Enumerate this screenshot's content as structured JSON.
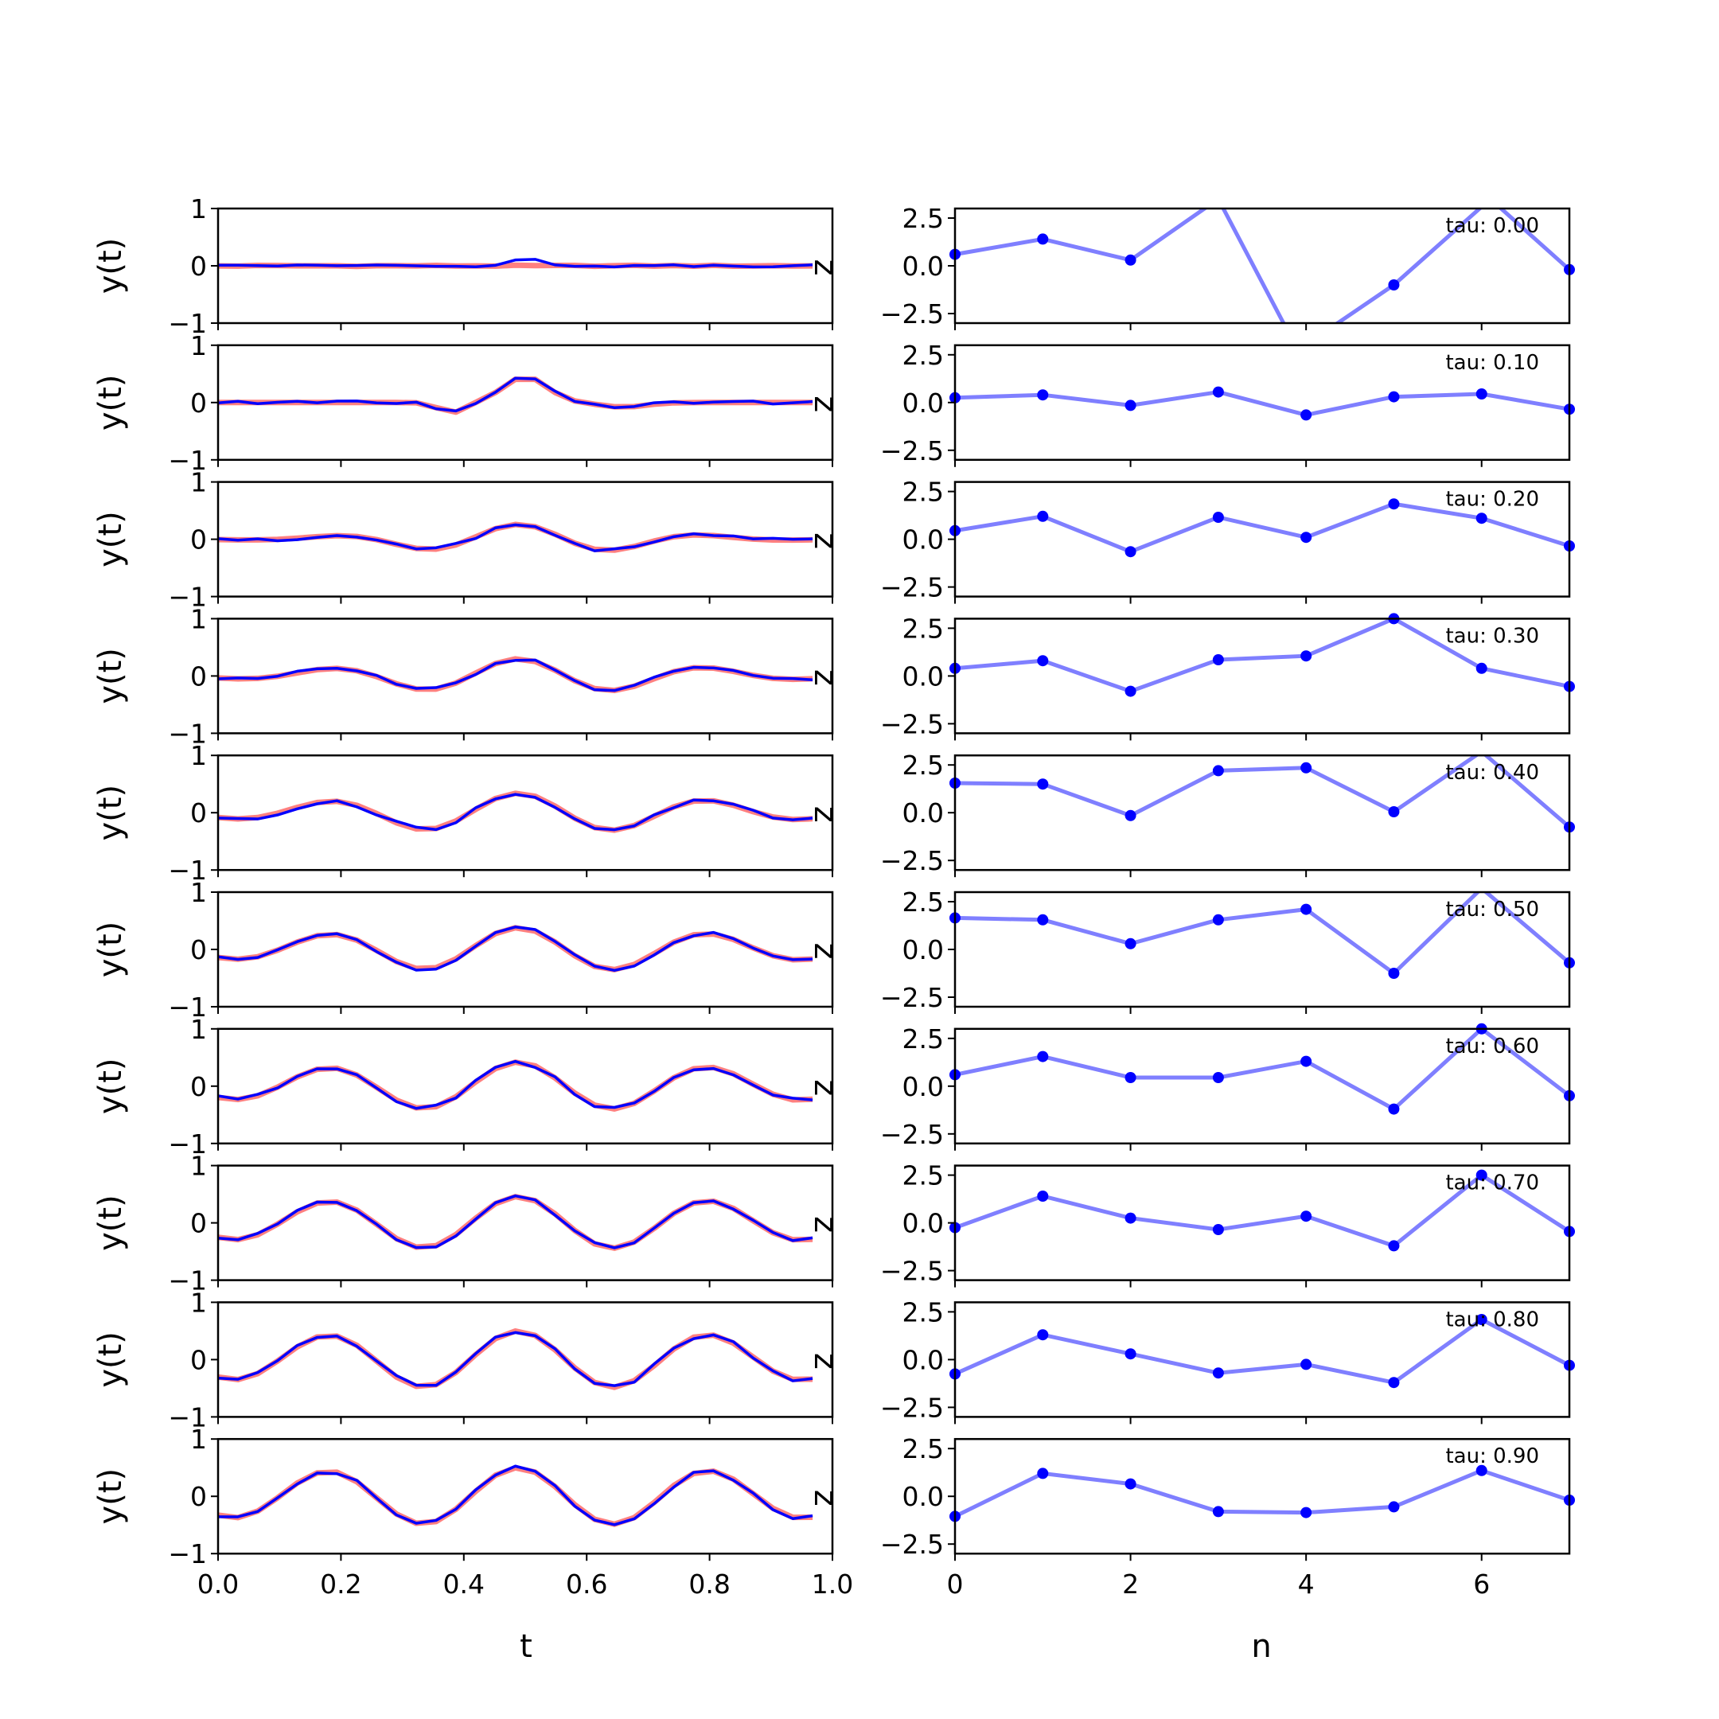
{
  "figure": {
    "left_xlabel": "t",
    "right_xlabel": "n",
    "left_ylabel": "y(t)",
    "corner_label": "z",
    "tau_prefix": "tau: "
  },
  "chart_data": {
    "type": "line",
    "left_panels": {
      "xlim": [
        0.0,
        1.0
      ],
      "ylim": [
        -1,
        1
      ],
      "x_ticks": [
        "0.0",
        "0.2",
        "0.4",
        "0.6",
        "0.8",
        "1.0"
      ],
      "y_ticks": [
        "1",
        "0",
        "−1"
      ],
      "series_colors": {
        "target": "#ff8080",
        "prediction": "#0000ff"
      },
      "t_values": [
        0.0,
        0.0323,
        0.0645,
        0.0968,
        0.129,
        0.1613,
        0.1935,
        0.2258,
        0.2581,
        0.2903,
        0.3226,
        0.3548,
        0.3871,
        0.4194,
        0.4516,
        0.4839,
        0.5161,
        0.5484,
        0.5806,
        0.6129,
        0.6452,
        0.6774,
        0.7097,
        0.7419,
        0.7742,
        0.8065,
        0.8387,
        0.871,
        0.9032,
        0.9355,
        0.9677
      ]
    },
    "right_panels": {
      "xlim": [
        0,
        7
      ],
      "ylim": [
        -3,
        3
      ],
      "x_ticks": [
        "0",
        "2",
        "4",
        "6"
      ],
      "y_ticks": [
        "2.5",
        "0.0",
        "−2.5"
      ],
      "color": "#0000ff",
      "n": [
        0,
        1,
        2,
        3,
        4,
        5,
        6,
        7
      ]
    },
    "rows": [
      {
        "tau": "0.00",
        "latent": [
          0.6,
          1.4,
          0.3,
          3.5,
          -3.5,
          -3.5,
          -1.0,
          3.5,
          -0.2
        ],
        "latent_n": [
          0,
          1,
          2,
          3,
          3.8,
          4.2,
          5,
          6.1,
          7
        ]
      },
      {
        "tau": "0.10",
        "latent": [
          0.25,
          0.4,
          -0.15,
          0.55,
          -0.65,
          0.3,
          0.45,
          -0.35
        ]
      },
      {
        "tau": "0.20",
        "latent": [
          0.45,
          1.2,
          -0.65,
          1.15,
          0.1,
          1.85,
          1.1,
          -0.35
        ]
      },
      {
        "tau": "0.30",
        "latent": [
          0.4,
          0.8,
          -0.8,
          0.85,
          1.05,
          3.0,
          0.4,
          -0.55
        ]
      },
      {
        "tau": "0.40",
        "latent": [
          1.55,
          1.5,
          -0.15,
          2.2,
          2.35,
          0.05,
          3.2,
          -0.75
        ]
      },
      {
        "tau": "0.50",
        "latent": [
          1.65,
          1.55,
          0.3,
          1.55,
          2.1,
          -1.25,
          3.2,
          -0.7
        ]
      },
      {
        "tau": "0.60",
        "latent": [
          0.6,
          1.55,
          0.45,
          0.45,
          1.3,
          -1.2,
          3.0,
          -0.5
        ]
      },
      {
        "tau": "0.70",
        "latent": [
          -0.25,
          1.4,
          0.25,
          -0.35,
          0.35,
          -1.2,
          2.5,
          -0.45
        ]
      },
      {
        "tau": "0.80",
        "latent": [
          -0.75,
          1.3,
          0.3,
          -0.7,
          -0.25,
          -1.2,
          2.1,
          -0.3
        ]
      },
      {
        "tau": "0.90",
        "latent": [
          -1.05,
          1.2,
          0.65,
          -0.8,
          -0.85,
          -0.55,
          1.35,
          -0.2
        ]
      }
    ]
  }
}
